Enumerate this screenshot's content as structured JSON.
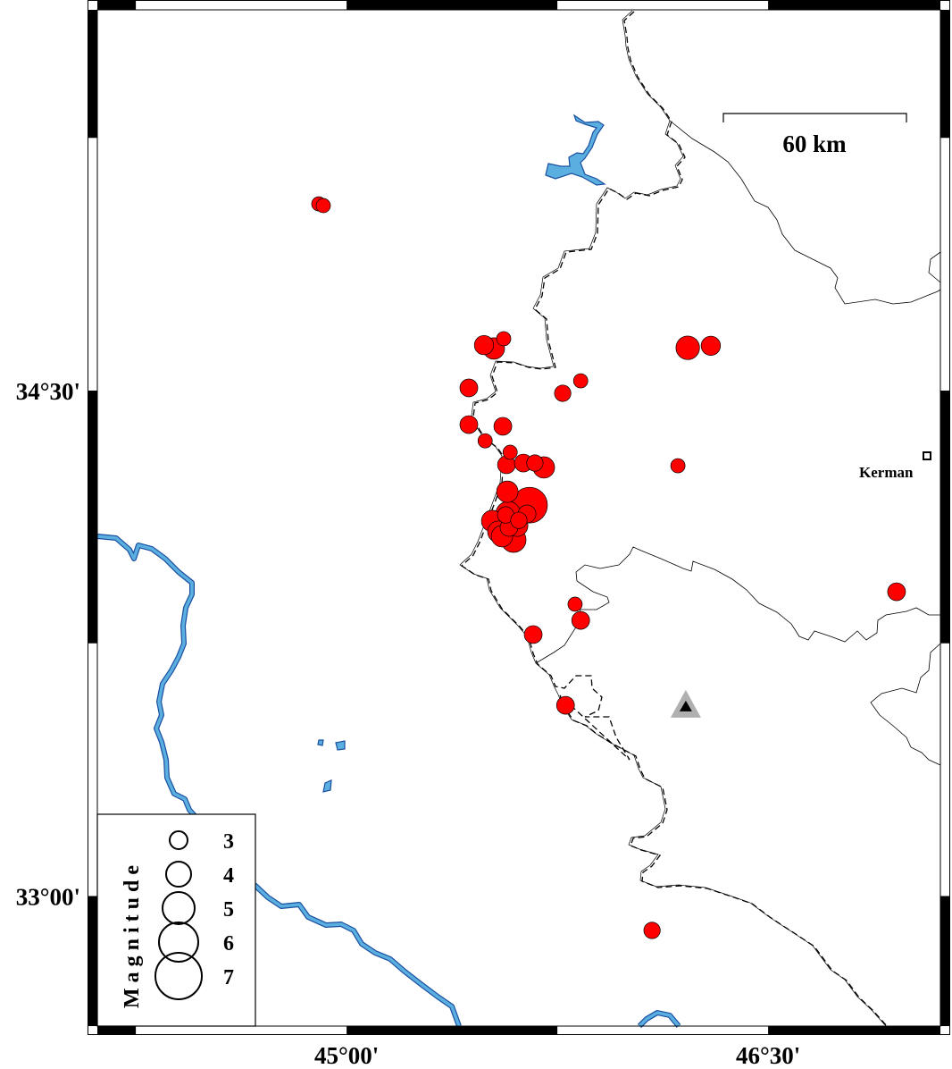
{
  "map": {
    "lon_range": [
      44.113,
      47.113
    ],
    "lat_range": [
      32.614,
      35.63
    ],
    "x_tick_labels": [
      {
        "lon": 45.0,
        "label": "45°00'"
      },
      {
        "lon": 46.5,
        "label": "46°30'"
      }
    ],
    "y_tick_labels": [
      {
        "lat": 34.5,
        "label": "34°30'"
      },
      {
        "lat": 33.0,
        "label": "33°00'"
      }
    ],
    "frame_interval_deg": 0.75,
    "scale_bar": {
      "label": "60 km",
      "km": 60
    },
    "colors": {
      "earthquake": "#ff0000",
      "water": "#5aaee0",
      "water_outline": "#1a4fa0",
      "station": "#b0b0b0"
    },
    "city": {
      "name": "Kerman",
      "lon": 47.065,
      "lat": 34.306
    },
    "station": {
      "lon": 46.207,
      "lat": 33.564,
      "icon": "triangle"
    },
    "earthquakes": [
      {
        "lon": 44.901,
        "lat": 35.054,
        "mag": 2.5
      },
      {
        "lon": 44.917,
        "lat": 35.049,
        "mag": 2.5
      },
      {
        "lon": 45.489,
        "lat": 34.635,
        "mag": 3.2
      },
      {
        "lon": 45.524,
        "lat": 34.625,
        "mag": 3.5
      },
      {
        "lon": 45.559,
        "lat": 34.654,
        "mag": 2.5
      },
      {
        "lon": 45.435,
        "lat": 34.508,
        "mag": 3.0
      },
      {
        "lon": 45.769,
        "lat": 34.492,
        "mag": 2.8
      },
      {
        "lon": 45.833,
        "lat": 34.529,
        "mag": 2.5
      },
      {
        "lon": 45.435,
        "lat": 34.399,
        "mag": 3.0
      },
      {
        "lon": 45.556,
        "lat": 34.394,
        "mag": 3.0
      },
      {
        "lon": 45.493,
        "lat": 34.351,
        "mag": 2.5
      },
      {
        "lon": 46.214,
        "lat": 34.627,
        "mag": 3.8
      },
      {
        "lon": 46.296,
        "lat": 34.633,
        "mag": 3.2
      },
      {
        "lon": 46.179,
        "lat": 34.277,
        "mag": 2.5
      },
      {
        "lon": 45.569,
        "lat": 34.28,
        "mag": 3.0
      },
      {
        "lon": 45.629,
        "lat": 34.285,
        "mag": 3.0
      },
      {
        "lon": 45.67,
        "lat": 34.285,
        "mag": 2.8
      },
      {
        "lon": 45.702,
        "lat": 34.272,
        "mag": 3.5
      },
      {
        "lon": 45.582,
        "lat": 34.317,
        "mag": 2.5
      },
      {
        "lon": 45.651,
        "lat": 34.16,
        "mag": 5.5
      },
      {
        "lon": 45.572,
        "lat": 34.2,
        "mag": 3.5
      },
      {
        "lon": 45.575,
        "lat": 34.134,
        "mag": 4.0
      },
      {
        "lon": 45.607,
        "lat": 34.099,
        "mag": 3.5
      },
      {
        "lon": 45.518,
        "lat": 34.113,
        "mag": 3.5
      },
      {
        "lon": 45.594,
        "lat": 34.057,
        "mag": 4.0
      },
      {
        "lon": 45.642,
        "lat": 34.134,
        "mag": 3.0
      },
      {
        "lon": 45.54,
        "lat": 34.081,
        "mag": 3.5
      },
      {
        "lon": 45.553,
        "lat": 34.068,
        "mag": 3.5
      },
      {
        "lon": 45.566,
        "lat": 34.131,
        "mag": 2.8
      },
      {
        "lon": 45.613,
        "lat": 34.115,
        "mag": 2.8
      },
      {
        "lon": 45.578,
        "lat": 34.094,
        "mag": 3.0
      },
      {
        "lon": 45.813,
        "lat": 33.866,
        "mag": 2.5
      },
      {
        "lon": 45.833,
        "lat": 33.818,
        "mag": 3.0
      },
      {
        "lon": 45.664,
        "lat": 33.776,
        "mag": 3.0
      },
      {
        "lon": 45.779,
        "lat": 33.566,
        "mag": 3.0
      },
      {
        "lon": 46.087,
        "lat": 32.898,
        "mag": 2.8
      },
      {
        "lon": 46.957,
        "lat": 33.903,
        "mag": 3.0
      }
    ]
  },
  "legend": {
    "title": "Magnitude",
    "entries": [
      {
        "mag": 3,
        "label": "3"
      },
      {
        "mag": 4,
        "label": "4"
      },
      {
        "mag": 5,
        "label": "5"
      },
      {
        "mag": 6,
        "label": "6"
      },
      {
        "mag": 7,
        "label": "7"
      }
    ]
  }
}
